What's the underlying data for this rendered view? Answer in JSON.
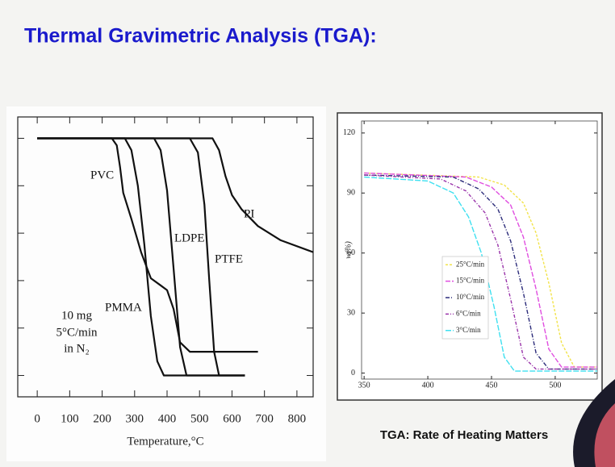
{
  "title": "Thermal Gravimetric Analysis (TGA):",
  "caption": "TGA: Rate of Heating Matters",
  "chart_data": [
    {
      "type": "line",
      "xlabel": "Temperature,°C",
      "xlim": [
        -60,
        850
      ],
      "xticks": [
        0,
        100,
        200,
        300,
        400,
        500,
        600,
        700,
        800
      ],
      "ylim": [
        -9,
        109
      ],
      "yticks": [
        0,
        20,
        40,
        60,
        80,
        100
      ],
      "annotations": [
        "10 mg",
        "5°C/min",
        "in N₂"
      ],
      "series": [
        {
          "name": "PVC",
          "color": "#111111",
          "x": [
            0,
            230,
            245,
            255,
            265,
            290,
            320,
            350,
            380,
            400,
            420,
            440,
            470,
            680
          ],
          "values": [
            100,
            100,
            97,
            88,
            77,
            66,
            52,
            41,
            38,
            36,
            28,
            14,
            10,
            10
          ]
        },
        {
          "name": "PMMA",
          "color": "#111111",
          "x": [
            0,
            270,
            290,
            310,
            330,
            350,
            370,
            390,
            640
          ],
          "values": [
            100,
            100,
            95,
            80,
            55,
            25,
            6,
            0,
            0
          ]
        },
        {
          "name": "LDPE",
          "color": "#111111",
          "x": [
            0,
            360,
            380,
            400,
            420,
            440,
            460,
            640
          ],
          "values": [
            100,
            100,
            95,
            78,
            45,
            12,
            0,
            0
          ]
        },
        {
          "name": "PTFE",
          "color": "#111111",
          "x": [
            0,
            470,
            495,
            515,
            530,
            545,
            560,
            640
          ],
          "values": [
            100,
            100,
            94,
            72,
            40,
            10,
            0,
            0
          ]
        },
        {
          "name": "PI",
          "color": "#111111",
          "x": [
            0,
            540,
            560,
            580,
            600,
            630,
            680,
            750,
            850
          ],
          "values": [
            100,
            100,
            95,
            84,
            76,
            70,
            63,
            57,
            52
          ]
        }
      ]
    },
    {
      "type": "line",
      "ylabel": "w(%)",
      "xlim": [
        348,
        533
      ],
      "xticks": [
        350,
        400,
        450,
        500
      ],
      "ylim": [
        -3,
        126
      ],
      "yticks": [
        0,
        30,
        60,
        90,
        120
      ],
      "series": [
        {
          "name": "25°C/min",
          "color": "#f2e34a",
          "x": [
            350,
            440,
            460,
            475,
            485,
            495,
            505,
            515,
            533
          ],
          "values": [
            100,
            98,
            94,
            85,
            70,
            45,
            15,
            3,
            3
          ]
        },
        {
          "name": "15°C/min",
          "color": "#e04ee0",
          "x": [
            350,
            430,
            450,
            465,
            475,
            485,
            495,
            505,
            533
          ],
          "values": [
            100,
            98,
            93,
            84,
            68,
            42,
            12,
            3,
            3
          ]
        },
        {
          "name": "10°C/min",
          "color": "#2c2c7a",
          "x": [
            350,
            420,
            440,
            455,
            465,
            475,
            485,
            495,
            533
          ],
          "values": [
            99,
            98,
            92,
            82,
            66,
            40,
            10,
            2,
            2
          ]
        },
        {
          "name": "6°C/min",
          "color": "#9a34aa",
          "x": [
            350,
            410,
            430,
            445,
            455,
            465,
            475,
            485,
            533
          ],
          "values": [
            99,
            97,
            91,
            80,
            64,
            37,
            8,
            2,
            2
          ]
        },
        {
          "name": "3°C/min",
          "color": "#3fe0f0",
          "x": [
            350,
            400,
            420,
            432,
            442,
            452,
            460,
            468,
            533
          ],
          "values": [
            98,
            96,
            90,
            78,
            60,
            33,
            8,
            1,
            1
          ]
        }
      ]
    }
  ]
}
